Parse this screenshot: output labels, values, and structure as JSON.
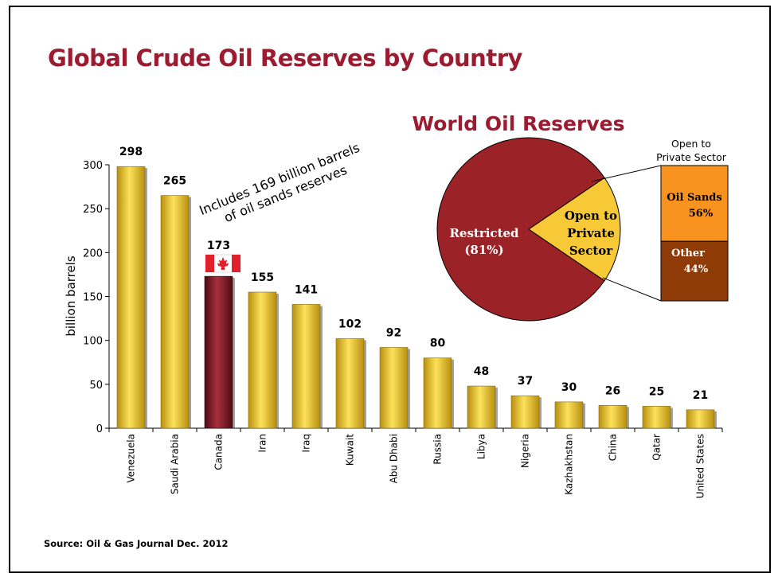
{
  "title": "Global Crude Oil Reserves by Country",
  "source": "Source: Oil & Gas Journal Dec. 2012",
  "colors": {
    "title": "#9b1b30",
    "bar_gold_light": "#fde25a",
    "bar_gold_dark": "#b88f10",
    "bar_canada_light": "#a8303e",
    "bar_canada_dark": "#4e0a13",
    "pie_restricted": "#9b2226",
    "pie_open": "#f8c936",
    "oil_sands": "#f7931e",
    "other": "#8f3b07"
  },
  "chart_data": [
    {
      "type": "bar",
      "title": "",
      "xlabel": "",
      "ylabel": "billion barrels",
      "ylim": [
        0,
        300
      ],
      "yticks": [
        0,
        50,
        100,
        150,
        200,
        250,
        300
      ],
      "categories": [
        "Venezuela",
        "Saudi Arabia",
        "Canada",
        "Iran",
        "Iraq",
        "Kuwait",
        "Abu Dhabi",
        "Russia",
        "Libya",
        "Nigeria",
        "Kazhakhstan",
        "China",
        "Qatar",
        "United States"
      ],
      "values": [
        298,
        265,
        173,
        155,
        141,
        102,
        92,
        80,
        48,
        37,
        30,
        26,
        25,
        21
      ],
      "highlight_category": "Canada",
      "grid": false,
      "annotation": {
        "line1": "Includes 169 billion barrels",
        "line2": "of oil sands reserves"
      },
      "flag_icon": "canada-flag-icon"
    },
    {
      "type": "pie",
      "title": "World Oil Reserves",
      "slices": [
        {
          "label_line1": "Restricted",
          "label_line2": "(81%)",
          "value": 81
        },
        {
          "label_line1": "Open to",
          "label_line2": "Private",
          "label_line3": "Sector",
          "value": 19
        }
      ]
    },
    {
      "type": "bar",
      "subtype": "stacked-100",
      "title_line1": "Open to",
      "title_line2": "Private Sector",
      "segments": [
        {
          "label": "Oil Sands",
          "pct_label": "56%",
          "value": 56
        },
        {
          "label": "Other",
          "pct_label": "44%",
          "value": 44
        }
      ]
    }
  ]
}
